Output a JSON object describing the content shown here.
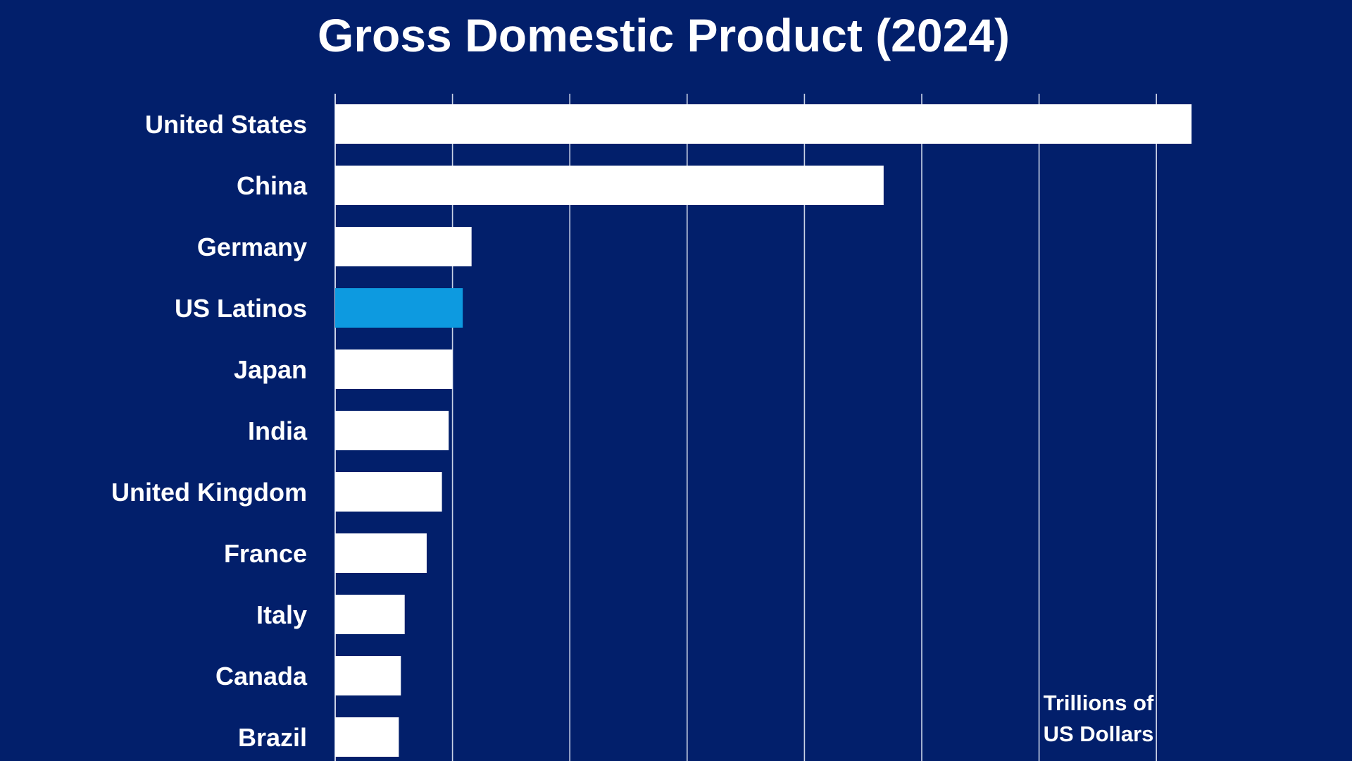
{
  "chart_data": {
    "type": "bar",
    "orientation": "horizontal",
    "title": "Gross Domestic Product (2024)",
    "unit_label": [
      "Trillions of",
      "US Dollars"
    ],
    "categories": [
      "United States",
      "China",
      "Germany",
      "US Latinos",
      "Japan",
      "India",
      "United Kingdom",
      "France",
      "Italy",
      "Canada",
      "Brazil"
    ],
    "values": [
      29.2,
      18.7,
      4.65,
      4.35,
      4.0,
      3.87,
      3.64,
      3.12,
      2.37,
      2.24,
      2.17
    ],
    "highlight_category": "US Latinos",
    "xlim": [
      0,
      28
    ],
    "x_gridline_step": 4,
    "grid": true,
    "tick_labels_shown": false
  },
  "colors": {
    "background": "#021f6b",
    "bar": "#ffffff",
    "highlight": "#0d9ae0",
    "gridline": "#c9d2e6",
    "text": "#ffffff"
  }
}
